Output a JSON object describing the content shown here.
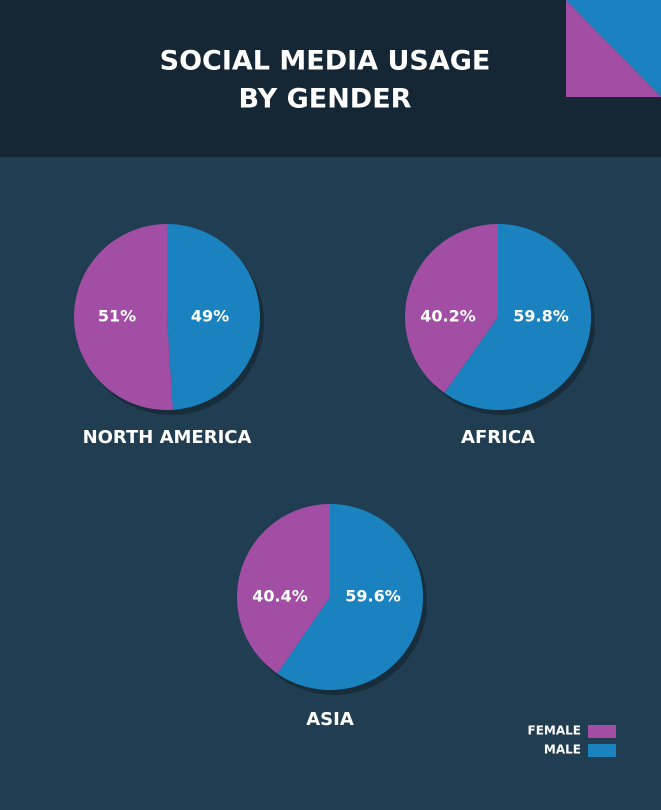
{
  "header": {
    "title_lines": [
      "SOCIAL MEDIA USAGE",
      "BY GENDER"
    ]
  },
  "legend": {
    "labels": [
      "FEMALE",
      "MALE"
    ],
    "colors": [
      "#a24ea4",
      "#1b82c0"
    ]
  },
  "chart_data": [
    {
      "type": "pie",
      "title": "NORTH AMERICA",
      "categories": [
        "FEMALE",
        "MALE"
      ],
      "values": [
        51,
        49
      ],
      "value_labels": [
        "51%",
        "49%"
      ],
      "colors": [
        "#a24ea4",
        "#1b82c0"
      ]
    },
    {
      "type": "pie",
      "title": "AFRICA",
      "categories": [
        "FEMALE",
        "MALE"
      ],
      "values": [
        40.2,
        59.8
      ],
      "value_labels": [
        "40.2%",
        "59.8%"
      ],
      "colors": [
        "#a24ea4",
        "#1b82c0"
      ]
    },
    {
      "type": "pie",
      "title": "ASIA",
      "categories": [
        "FEMALE",
        "MALE"
      ],
      "values": [
        40.4,
        59.6
      ],
      "value_labels": [
        "40.4%",
        "59.6%"
      ],
      "colors": [
        "#a24ea4",
        "#1b82c0"
      ]
    }
  ]
}
